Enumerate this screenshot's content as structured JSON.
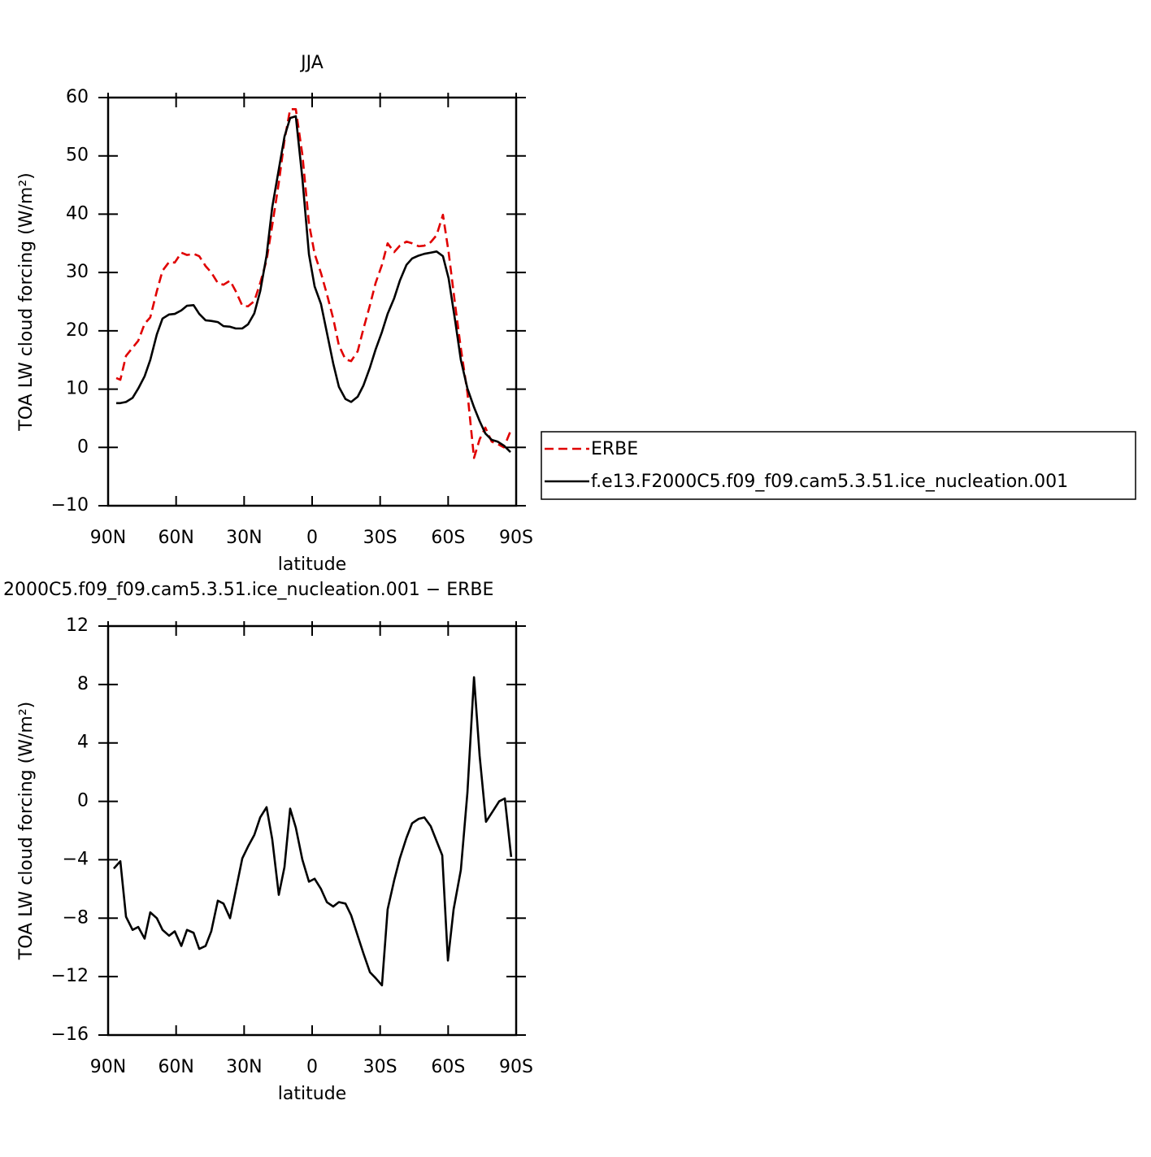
{
  "chart_data": [
    {
      "type": "line",
      "title": "JJA",
      "x_label": "latitude",
      "y_label": "TOA LW cloud forcing (W/m²)",
      "x": [
        86.4,
        84.6,
        82.1,
        79.2,
        76.7,
        73.9,
        71.4,
        68.5,
        66.0,
        63.1,
        60.6,
        57.7,
        55.2,
        52.3,
        49.8,
        47.0,
        44.5,
        41.6,
        39.1,
        36.2,
        33.7,
        30.8,
        28.3,
        25.5,
        22.9,
        20.1,
        17.6,
        14.7,
        12.2,
        9.7,
        7.2,
        4.3,
        1.4,
        -1.1,
        -3.9,
        -6.5,
        -9.3,
        -11.8,
        -14.7,
        -17.2,
        -20.1,
        -22.6,
        -25.5,
        -28.0,
        -30.8,
        -33.3,
        -36.2,
        -38.7,
        -41.6,
        -44.1,
        -47.0,
        -49.5,
        -52.3,
        -54.9,
        -57.7,
        -60.2,
        -63.1,
        -65.6,
        -68.5,
        -71.4,
        -73.9,
        -76.4,
        -79.2,
        -81.8,
        -84.6,
        -87.5
      ],
      "series": [
        {
          "name": "ERBE",
          "color": "#e00000",
          "dash": true,
          "values": [
            11.9,
            11.6,
            15.7,
            17.1,
            18.3,
            21.2,
            22.3,
            26.8,
            30.3,
            31.8,
            31.7,
            33.4,
            33.0,
            33.2,
            32.8,
            31.1,
            30.0,
            28.2,
            27.9,
            28.6,
            26.8,
            24.3,
            24.2,
            25.1,
            28.2,
            32.1,
            38.1,
            45.4,
            52.7,
            58.0,
            58.0,
            50.2,
            38.4,
            33.2,
            29.9,
            26.3,
            22.1,
            17.5,
            15.1,
            14.8,
            16.5,
            20.3,
            24.4,
            28.2,
            31.3,
            35.0,
            33.5,
            34.6,
            35.3,
            35.0,
            34.5,
            34.6,
            35.2,
            36.4,
            39.9,
            33.5,
            24.4,
            17.0,
            9.4,
            -1.8,
            1.4,
            3.4,
            1.0,
            0.6,
            0.0,
            2.8
          ]
        },
        {
          "name": "f.e13.F2000C5.f09_f09.cam5.3.51.ice_nucleation.001",
          "color": "#000000",
          "dash": false,
          "values": [
            7.6,
            7.6,
            7.8,
            8.5,
            10.1,
            12.2,
            15.0,
            19.4,
            22.1,
            22.8,
            22.9,
            23.5,
            24.3,
            24.4,
            22.9,
            21.8,
            21.7,
            21.5,
            20.8,
            20.7,
            20.4,
            20.4,
            21.1,
            23.0,
            26.8,
            32.9,
            41.2,
            47.7,
            53.3,
            56.5,
            56.8,
            46.1,
            33.1,
            27.6,
            24.6,
            19.7,
            14.4,
            10.4,
            8.3,
            7.8,
            8.7,
            10.6,
            13.7,
            16.8,
            19.8,
            22.9,
            25.6,
            28.6,
            31.3,
            32.4,
            32.9,
            33.2,
            33.4,
            33.6,
            32.8,
            29.0,
            21.7,
            15.0,
            10.1,
            6.9,
            4.5,
            2.4,
            1.3,
            1.0,
            0.3,
            -0.8
          ]
        }
      ],
      "xlim": [
        90,
        -90
      ],
      "xticks": [
        {
          "value": 90,
          "label": "90N"
        },
        {
          "value": 60,
          "label": "60N"
        },
        {
          "value": 30,
          "label": "30N"
        },
        0,
        {
          "value": -30,
          "label": "30S"
        },
        {
          "value": -60,
          "label": "60S"
        },
        {
          "value": -90,
          "label": "90S"
        }
      ],
      "ylim": [
        -10,
        60
      ],
      "yticks": [
        {
          "value": -10,
          "label": "−10"
        },
        0,
        10,
        20,
        30,
        40,
        50,
        60
      ],
      "legend": "outside-right"
    },
    {
      "type": "line",
      "title": "2000C5.f09_f09.cam5.3.51.ice_nucleation.001 − ERBE",
      "x_label": "latitude",
      "y_label": "TOA LW cloud forcing (W/m²)",
      "x": [
        87.5,
        84.6,
        82.1,
        79.2,
        76.7,
        73.9,
        71.4,
        68.5,
        66.0,
        63.1,
        60.6,
        57.7,
        55.2,
        52.3,
        49.8,
        47.0,
        44.5,
        41.6,
        39.1,
        36.2,
        33.7,
        30.8,
        28.3,
        25.5,
        22.9,
        20.1,
        17.6,
        14.7,
        12.2,
        9.7,
        7.2,
        4.3,
        1.4,
        -1.1,
        -3.9,
        -6.5,
        -9.3,
        -11.8,
        -14.7,
        -17.2,
        -20.1,
        -22.6,
        -25.5,
        -28.0,
        -30.8,
        -33.3,
        -36.2,
        -38.7,
        -41.6,
        -44.1,
        -47.0,
        -49.5,
        -52.3,
        -57.4,
        -59.9,
        -62.4,
        -65.6,
        -68.5,
        -71.4,
        -73.9,
        -76.7,
        -79.6,
        -82.5,
        -85.0,
        -87.8
      ],
      "values": [
        -4.6,
        -4.1,
        -7.9,
        -8.8,
        -8.6,
        -9.4,
        -7.6,
        -8.0,
        -8.8,
        -9.2,
        -8.9,
        -9.9,
        -8.8,
        -9.0,
        -10.1,
        -9.9,
        -8.9,
        -6.8,
        -7.0,
        -8.0,
        -6.1,
        -3.9,
        -3.1,
        -2.3,
        -1.1,
        -0.4,
        -2.6,
        -6.4,
        -4.5,
        -0.5,
        -1.8,
        -4.0,
        -5.5,
        -5.3,
        -6.0,
        -6.9,
        -7.2,
        -6.9,
        -7.0,
        -7.8,
        -9.2,
        -10.4,
        -11.7,
        -12.1,
        -12.6,
        -7.4,
        -5.4,
        -3.9,
        -2.5,
        -1.5,
        -1.2,
        -1.1,
        -1.7,
        -3.7,
        -10.9,
        -7.4,
        -4.7,
        0.6,
        8.5,
        3.1,
        -1.4,
        -0.7,
        0.0,
        0.2,
        -3.8
      ],
      "color": "#000000",
      "xlim": [
        90,
        -90
      ],
      "xticks": [
        {
          "value": 90,
          "label": "90N"
        },
        {
          "value": 60,
          "label": "60N"
        },
        {
          "value": 30,
          "label": "30N"
        },
        0,
        {
          "value": -30,
          "label": "30S"
        },
        {
          "value": -60,
          "label": "60S"
        },
        {
          "value": -90,
          "label": "90S"
        }
      ],
      "ylim": [
        -16,
        12
      ],
      "yticks": [
        {
          "value": -16,
          "label": "−16"
        },
        {
          "value": -12,
          "label": "−12"
        },
        {
          "value": -8,
          "label": "−8"
        },
        {
          "value": -4,
          "label": "−4"
        },
        0,
        4,
        8,
        12
      ]
    }
  ]
}
